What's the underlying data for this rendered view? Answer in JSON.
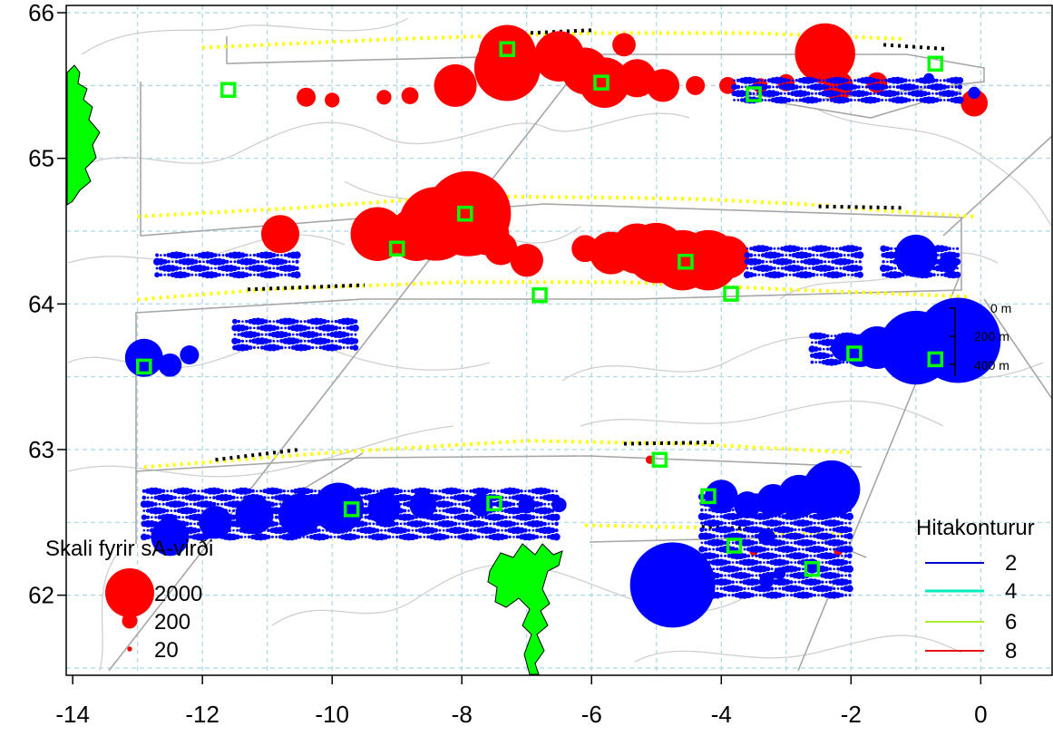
{
  "map": {
    "xlim": [
      -14.1,
      1.1
    ],
    "ylim": [
      61.45,
      66.05
    ],
    "x_ticks": [
      -14,
      -12,
      -10,
      -8,
      -6,
      -4,
      -2,
      0
    ],
    "y_ticks": [
      62,
      63,
      64,
      65,
      66
    ],
    "x_tick_labels": [
      "-14",
      "-12",
      "-10",
      "-8",
      "-6",
      "-4",
      "-2",
      "0"
    ],
    "y_tick_labels": [
      "62",
      "63",
      "64",
      "65",
      "66"
    ],
    "grid": true,
    "grid_x": [
      -13,
      -12,
      -11,
      -10,
      -9,
      -8,
      -7,
      -6,
      -5,
      -4,
      -3,
      -2,
      -1,
      0
    ],
    "grid_y": [
      61.5,
      62,
      62.5,
      63,
      63.5,
      64,
      64.5,
      65,
      65.5,
      66
    ],
    "colors": {
      "positive": "#ff0000",
      "negative": "#0000ff",
      "station": "#00ff00",
      "land": "#00ff00",
      "track_yellow": "#ffff00",
      "track_black": "#000000",
      "contour": "#cccccc",
      "survey_box": "#a6a6a6",
      "grid": "#a8d8e8"
    }
  },
  "size_legend": {
    "title": "Skali fyrir sA-virði",
    "items": [
      {
        "label": "2000",
        "value": 2000
      },
      {
        "label": "200",
        "value": 200
      },
      {
        "label": "20",
        "value": 20
      }
    ]
  },
  "contour_legend": {
    "title": "Hitakonturur",
    "items": [
      {
        "label": "2",
        "color": "#0000cd"
      },
      {
        "label": "4",
        "color": "#00eebb"
      },
      {
        "label": "6",
        "color": "#aaee33"
      },
      {
        "label": "8",
        "color": "#ee1111"
      }
    ]
  },
  "depth_scale": {
    "labels": [
      "0 m",
      "200 m",
      "400 m"
    ]
  },
  "chart_data": {
    "type": "scatter",
    "xlabel": "",
    "ylabel": "",
    "xlim": [
      -14.1,
      1.1
    ],
    "ylim": [
      61.45,
      66.05
    ],
    "grid": true,
    "legend_placement": [
      "bottom-left",
      "bottom-right"
    ],
    "series": [
      {
        "name": "sA (red)",
        "color": "#ff0000",
        "points": [
          {
            "x": -7.3,
            "y": 65.72,
            "v": 900
          },
          {
            "x": -7.3,
            "y": 65.62,
            "v": 1200
          },
          {
            "x": -6.5,
            "y": 65.7,
            "v": 700
          },
          {
            "x": -6.1,
            "y": 65.6,
            "v": 600
          },
          {
            "x": -5.8,
            "y": 65.52,
            "v": 700
          },
          {
            "x": -5.3,
            "y": 65.55,
            "v": 400
          },
          {
            "x": -5.5,
            "y": 65.78,
            "v": 150
          },
          {
            "x": -4.9,
            "y": 65.5,
            "v": 300
          },
          {
            "x": -2.4,
            "y": 65.72,
            "v": 1000
          },
          {
            "x": -2.2,
            "y": 65.5,
            "v": 250
          },
          {
            "x": -1.6,
            "y": 65.52,
            "v": 120
          },
          {
            "x": -0.1,
            "y": 65.38,
            "v": 200
          },
          {
            "x": -4.4,
            "y": 65.5,
            "v": 100
          },
          {
            "x": -3.9,
            "y": 65.5,
            "v": 80
          },
          {
            "x": -3.4,
            "y": 65.5,
            "v": 60
          },
          {
            "x": -3.0,
            "y": 65.52,
            "v": 80
          },
          {
            "x": -8.1,
            "y": 65.5,
            "v": 500
          },
          {
            "x": -8.8,
            "y": 65.43,
            "v": 80
          },
          {
            "x": -9.2,
            "y": 65.42,
            "v": 60
          },
          {
            "x": -10.4,
            "y": 65.42,
            "v": 100
          },
          {
            "x": -10.0,
            "y": 65.4,
            "v": 60
          },
          {
            "x": -7.9,
            "y": 64.62,
            "v": 2000
          },
          {
            "x": -8.4,
            "y": 64.55,
            "v": 1500
          },
          {
            "x": -8.7,
            "y": 64.48,
            "v": 800
          },
          {
            "x": -9.3,
            "y": 64.48,
            "v": 800
          },
          {
            "x": -10.8,
            "y": 64.48,
            "v": 400
          },
          {
            "x": -7.6,
            "y": 64.48,
            "v": 500
          },
          {
            "x": -7.4,
            "y": 64.38,
            "v": 300
          },
          {
            "x": -7.0,
            "y": 64.3,
            "v": 300
          },
          {
            "x": -6.1,
            "y": 64.38,
            "v": 200
          },
          {
            "x": -5.7,
            "y": 64.35,
            "v": 500
          },
          {
            "x": -5.3,
            "y": 64.38,
            "v": 700
          },
          {
            "x": -5.0,
            "y": 64.35,
            "v": 1000
          },
          {
            "x": -4.6,
            "y": 64.3,
            "v": 1000
          },
          {
            "x": -4.2,
            "y": 64.3,
            "v": 1000
          },
          {
            "x": -3.9,
            "y": 64.32,
            "v": 500
          },
          {
            "x": -2.2,
            "y": 62.85,
            "v": 100
          },
          {
            "x": -2.2,
            "y": 62.3,
            "v": 20
          },
          {
            "x": -5.1,
            "y": 62.93,
            "v": 20
          },
          {
            "x": -3.5,
            "y": 62.3,
            "v": 20
          }
        ]
      },
      {
        "name": "sA (blue)",
        "color": "#0000ff",
        "points": [
          {
            "x": -0.35,
            "y": 63.75,
            "v": 2000
          },
          {
            "x": -1.0,
            "y": 63.7,
            "v": 1500
          },
          {
            "x": -1.6,
            "y": 63.7,
            "v": 500
          },
          {
            "x": -1.85,
            "y": 63.68,
            "v": 300
          },
          {
            "x": -2.1,
            "y": 63.7,
            "v": 200
          },
          {
            "x": -1.0,
            "y": 64.33,
            "v": 500
          },
          {
            "x": -0.5,
            "y": 64.28,
            "v": 100
          },
          {
            "x": -12.9,
            "y": 63.63,
            "v": 400
          },
          {
            "x": -12.5,
            "y": 63.58,
            "v": 150
          },
          {
            "x": -12.2,
            "y": 63.65,
            "v": 100
          },
          {
            "x": -4.75,
            "y": 62.07,
            "v": 2000
          },
          {
            "x": -2.3,
            "y": 62.73,
            "v": 900
          },
          {
            "x": -2.8,
            "y": 62.68,
            "v": 500
          },
          {
            "x": -3.2,
            "y": 62.65,
            "v": 300
          },
          {
            "x": -4.0,
            "y": 62.68,
            "v": 300
          },
          {
            "x": -3.6,
            "y": 62.62,
            "v": 200
          },
          {
            "x": -9.9,
            "y": 62.6,
            "v": 700
          },
          {
            "x": -10.5,
            "y": 62.55,
            "v": 500
          },
          {
            "x": -11.2,
            "y": 62.55,
            "v": 400
          },
          {
            "x": -11.8,
            "y": 62.5,
            "v": 300
          },
          {
            "x": -12.5,
            "y": 62.4,
            "v": 400
          },
          {
            "x": -9.2,
            "y": 62.6,
            "v": 300
          },
          {
            "x": -8.6,
            "y": 62.62,
            "v": 200
          },
          {
            "x": -7.7,
            "y": 62.62,
            "v": 150
          },
          {
            "x": -7.0,
            "y": 62.62,
            "v": 80
          },
          {
            "x": -6.5,
            "y": 62.62,
            "v": 60
          },
          {
            "x": -3.3,
            "y": 62.4,
            "v": 80
          },
          {
            "x": -3.3,
            "y": 62.1,
            "v": 60
          },
          {
            "x": -2.6,
            "y": 62.2,
            "v": 60
          },
          {
            "x": -3.1,
            "y": 62.15,
            "v": 40
          },
          {
            "x": -0.1,
            "y": 65.45,
            "v": 40
          },
          {
            "x": -0.8,
            "y": 65.55,
            "v": 30
          }
        ]
      },
      {
        "name": "stöðvar",
        "color": "#00ff00",
        "points": [
          {
            "x": -7.3,
            "y": 65.75
          },
          {
            "x": -5.85,
            "y": 65.52
          },
          {
            "x": -3.5,
            "y": 65.44
          },
          {
            "x": -0.7,
            "y": 65.65
          },
          {
            "x": -11.6,
            "y": 65.47
          },
          {
            "x": -7.95,
            "y": 64.62
          },
          {
            "x": -9.0,
            "y": 64.38
          },
          {
            "x": -4.55,
            "y": 64.29
          },
          {
            "x": -6.8,
            "y": 64.06
          },
          {
            "x": -3.85,
            "y": 64.07
          },
          {
            "x": -12.9,
            "y": 63.57
          },
          {
            "x": -1.95,
            "y": 63.66
          },
          {
            "x": -0.7,
            "y": 63.62
          },
          {
            "x": -9.7,
            "y": 62.59
          },
          {
            "x": -7.5,
            "y": 62.63
          },
          {
            "x": -4.95,
            "y": 62.93
          },
          {
            "x": -4.2,
            "y": 62.68
          },
          {
            "x": -3.8,
            "y": 62.34
          },
          {
            "x": -2.6,
            "y": 62.18
          }
        ]
      }
    ]
  }
}
